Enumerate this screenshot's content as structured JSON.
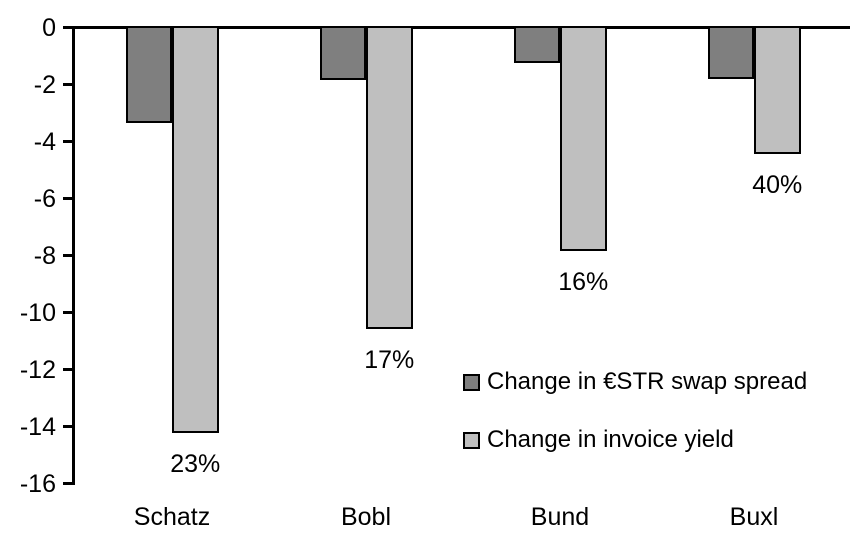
{
  "chart_data": {
    "type": "bar",
    "orientation": "vertical",
    "title": "",
    "xlabel": "",
    "ylabel": "",
    "categories": [
      "Schatz",
      "Bobl",
      "Bund",
      "Buxl"
    ],
    "series": [
      {
        "name": "Change in €STR swap spread",
        "color": "#7f7f7f",
        "values": [
          -3.3,
          -1.8,
          -1.2,
          -1.75
        ]
      },
      {
        "name": "Change in invoice yield",
        "color": "#bfbfbf",
        "values": [
          -14.2,
          -10.55,
          -7.8,
          -4.4
        ]
      }
    ],
    "data_labels": [
      "23%",
      "17%",
      "16%",
      "40%"
    ],
    "data_labels_series": "Change in invoice yield",
    "yticks": [
      0,
      -2,
      -4,
      -6,
      -8,
      -10,
      -12,
      -14,
      -16
    ],
    "ylim": [
      -16,
      0
    ],
    "grid": false,
    "legend_position": "inside-right",
    "axis_color": "#000000",
    "background_color": "#ffffff"
  }
}
